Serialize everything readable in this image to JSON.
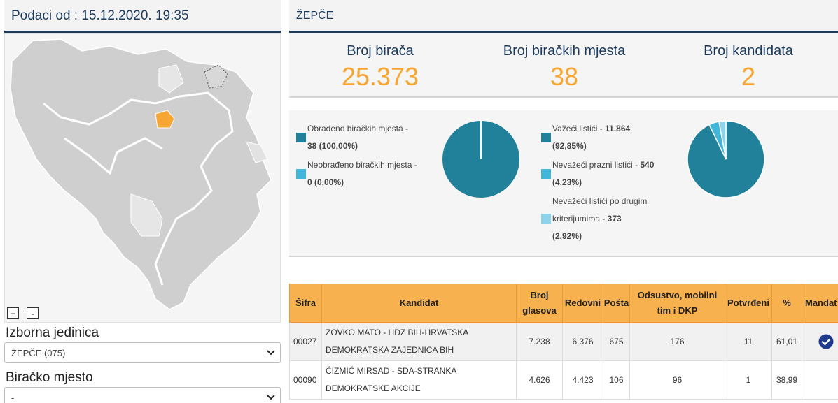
{
  "left": {
    "header": "Podaci od : 15.12.2020. 19:35",
    "zoom_in": "+",
    "zoom_out": "-",
    "constituency_label": "Izborna jedinica",
    "constituency_value": "ŽEPČE (075)",
    "polling_label": "Biračko mjesto",
    "polling_value": "-"
  },
  "right": {
    "header": "ŽEPČE",
    "stats": [
      {
        "label": "Broj birača",
        "value": "25.373"
      },
      {
        "label": "Broj biračkih mjesta",
        "value": "38"
      },
      {
        "label": "Broj kandidata",
        "value": "2"
      }
    ],
    "legend1": {
      "processed_label": "Obrađeno biračkih mjesta -",
      "processed_value": "38 (100,00%)",
      "unprocessed_label": "Neobrađeno biračkih mjesta -",
      "unprocessed_value": "0 (0,00%)"
    },
    "legend2": {
      "valid_label": "Važeći listići - ",
      "valid_count": "11.864",
      "valid_pct": "(92,85%)",
      "blank_label": "Nevažeći prazni listići - ",
      "blank_count": "540",
      "blank_pct": "(4,23%)",
      "other_label_1": "Nevažeći listići po drugim",
      "other_label_2": "kriterijumima - ",
      "other_count": "373",
      "other_pct": "(2,92%)"
    },
    "colors": {
      "primary": "#21809a",
      "light": "#41b6d8",
      "lighter": "#8fd3ea",
      "accent": "#f7a533",
      "navy": "#1f3b5c"
    }
  },
  "pie1": {
    "processed": 100.0,
    "unprocessed": 0.0
  },
  "pie2": {
    "valid": 92.85,
    "blank": 4.23,
    "other": 2.92
  },
  "table": {
    "headers": [
      "Šifra",
      "Kandidat",
      "Broj glasova",
      "Redovni",
      "Pošta",
      "Odsustvo, mobilni tim i DKP",
      "Potvrđeni",
      "%",
      "Mandat"
    ],
    "rows": [
      {
        "code": "00027",
        "candidate": "ZOVKO MATO - HDZ BIH-HRVATSKA DEMOKRATSKA ZAJEDNICA BIH",
        "votes": "7.238",
        "regular": "6.376",
        "mail": "675",
        "absent": "176",
        "confirmed": "11",
        "pct": "61,01",
        "mandate": true
      },
      {
        "code": "00090",
        "candidate": "ČIZMIĆ MIRSAD - SDA-STRANKA DEMOKRATSKE AKCIJE",
        "votes": "4.626",
        "regular": "4.423",
        "mail": "106",
        "absent": "96",
        "confirmed": "1",
        "pct": "38,99",
        "mandate": false
      }
    ]
  }
}
